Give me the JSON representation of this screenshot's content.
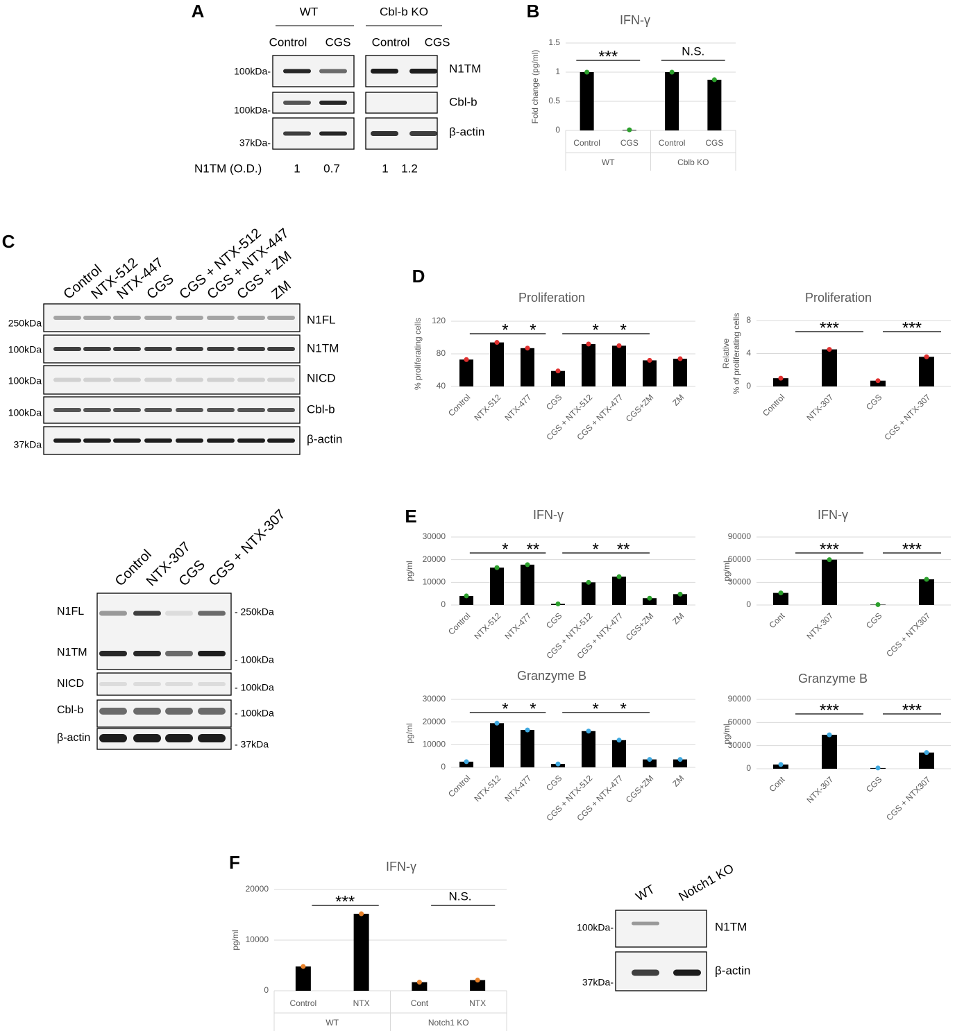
{
  "panels": [
    "A",
    "B",
    "C",
    "D",
    "E",
    "F"
  ],
  "blots": {
    "A": {
      "groups": [
        "WT",
        "Cbl-b KO"
      ],
      "lanes": [
        "Control",
        "CGS",
        "Control",
        "CGS"
      ],
      "rows": [
        "N1TM",
        "Cbl-b",
        "β-actin"
      ],
      "markers": [
        "100kDa-",
        "100kDa-",
        "37kDa-"
      ],
      "quant_label": "N1TM (O.D.)",
      "quant": [
        1,
        0.7,
        1,
        1.2
      ]
    },
    "C": {
      "lanes": [
        "Control",
        "NTX-512",
        "NTX-447",
        "CGS",
        "CGS + NTX-512",
        "CGS + NTX-447",
        "CGS + ZM",
        "ZM"
      ],
      "rows": [
        "N1FL",
        "N1TM",
        "NICD",
        "Cbl-b",
        "β-actin"
      ],
      "markers": [
        "250kDa",
        "100kDa",
        "100kDa",
        "100kDa",
        "37kDa"
      ]
    },
    "C2": {
      "lanes": [
        "Control",
        "NTX-307",
        "CGS",
        "CGS + NTX-307"
      ],
      "rows": [
        "N1FL",
        "N1TM",
        "NICD",
        "Cbl-b",
        "β-actin"
      ],
      "markers": [
        "- 250kDa",
        "- 100kDa",
        "- 100kDa",
        "- 100kDa",
        "- 37kDa"
      ]
    },
    "F": {
      "lanes": [
        "WT",
        "Notch1 KO"
      ],
      "rows": [
        "N1TM",
        "β-actin"
      ],
      "markers": [
        "100kDa-",
        "37kDa-"
      ]
    }
  },
  "chart_data": [
    {
      "type": "bar",
      "title": "IFN-γ",
      "ylabel": "Fold change (pg/ml)",
      "categories": [
        "Control",
        "CGS",
        "Control",
        "CGS"
      ],
      "groups": [
        "WT",
        "Cblb KO"
      ],
      "values": [
        1,
        0.01,
        1,
        0.87
      ],
      "ylim": [
        0,
        1.5
      ],
      "yticks": [
        0,
        0.5,
        1,
        1.5
      ],
      "grid": true,
      "bar_color": "#000000",
      "color": "#2ca02c",
      "annotations": [
        "***",
        "N.S."
      ]
    },
    {
      "type": "bar",
      "title": "Proliferation",
      "ylabel": "% proliferating cells",
      "categories": [
        "Control",
        "NTX-512",
        "NTX-477",
        "CGS",
        "CGS + NTX-512",
        "CGS + NTX-477",
        "CGS+ZM",
        "ZM"
      ],
      "values": [
        73,
        94,
        87,
        59,
        92,
        90,
        72,
        74
      ],
      "ylim": [
        40,
        120
      ],
      "yticks": [
        40,
        80,
        120
      ],
      "grid": true,
      "bar_color": "#000000",
      "color": "#e0302f",
      "annotations": [
        "*",
        "*",
        "*",
        "*"
      ]
    },
    {
      "type": "bar",
      "title": "Proliferation",
      "ylabel": [
        "Relative",
        "% of proliferating cells"
      ],
      "categories": [
        "Control",
        "NTX-307",
        "CGS",
        "CGS + NTX-307"
      ],
      "values": [
        1,
        4.5,
        0.7,
        3.6
      ],
      "ylim": [
        0,
        8
      ],
      "yticks": [
        0,
        4,
        8
      ],
      "grid": true,
      "bar_color": "#000000",
      "color": "#e0302f",
      "annotations": [
        "***",
        "***"
      ]
    },
    {
      "type": "bar",
      "title": "IFN-γ",
      "ylabel": "pg/ml",
      "categories": [
        "Control",
        "NTX-512",
        "NTX-477",
        "CGS",
        "CGS + NTX-512",
        "CGS + NTX-477",
        "CGS+ZM",
        "ZM"
      ],
      "values": [
        4000,
        16500,
        17800,
        500,
        10000,
        12500,
        3000,
        4800
      ],
      "ylim": [
        0,
        30000
      ],
      "yticks": [
        0,
        10000,
        20000,
        30000
      ],
      "grid": true,
      "bar_color": "#000000",
      "color": "#2ca02c",
      "annotations": [
        "*",
        "**",
        "*",
        "**"
      ]
    },
    {
      "type": "bar",
      "title": "IFN-γ",
      "ylabel": "pg/ml",
      "categories": [
        "Cont",
        "NTX-307",
        "CGS",
        "CGS + NTX307"
      ],
      "values": [
        16000,
        60000,
        500,
        34000
      ],
      "ylim": [
        0,
        90000
      ],
      "yticks": [
        0,
        30000,
        60000,
        90000
      ],
      "grid": true,
      "bar_color": "#000000",
      "color": "#2ca02c",
      "annotations": [
        "***",
        "***"
      ]
    },
    {
      "type": "bar",
      "title": "Granzyme B",
      "ylabel": "pg/ml",
      "categories": [
        "Control",
        "NTX-512",
        "NTX-477",
        "CGS",
        "CGS + NTX-512",
        "CGS + NTX-477",
        "CGS+ZM",
        "ZM"
      ],
      "values": [
        2500,
        19500,
        16500,
        1500,
        16000,
        12000,
        3500,
        3500
      ],
      "ylim": [
        0,
        30000
      ],
      "yticks": [
        0,
        10000,
        20000,
        30000
      ],
      "grid": true,
      "bar_color": "#000000",
      "color": "#3fa9e0",
      "annotations": [
        "*",
        "*",
        "*",
        "*"
      ]
    },
    {
      "type": "bar",
      "title": "Granzyme B",
      "ylabel": "pg/ml",
      "categories": [
        "Cont",
        "NTX-307",
        "CGS",
        "CGS + NTX307"
      ],
      "values": [
        5500,
        44000,
        1000,
        21000
      ],
      "ylim": [
        0,
        90000
      ],
      "yticks": [
        0,
        30000,
        60000,
        90000
      ],
      "grid": true,
      "bar_color": "#000000",
      "color": "#3fa9e0",
      "annotations": [
        "***",
        "***"
      ]
    },
    {
      "type": "bar",
      "title": "IFN-γ",
      "ylabel": "pg/ml",
      "categories": [
        "Control",
        "NTX",
        "Cont",
        "NTX"
      ],
      "groups": [
        "WT",
        "Notch1 KO"
      ],
      "values": [
        4800,
        15200,
        1700,
        2100
      ],
      "ylim": [
        0,
        20000
      ],
      "yticks": [
        0,
        10000,
        20000
      ],
      "grid": true,
      "bar_color": "#000000",
      "color": "#e8822a",
      "annotations": [
        "***",
        "N.S."
      ]
    }
  ]
}
